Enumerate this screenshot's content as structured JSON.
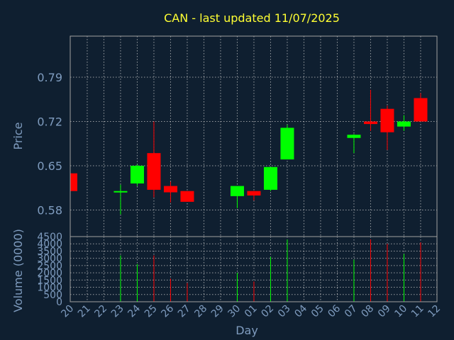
{
  "chart_data": {
    "type": "candlestick",
    "title": "CAN - last updated 11/07/2025",
    "xlabel": "Day",
    "price_panel": {
      "ylabel": "Price",
      "ylim": [
        0.538,
        0.855
      ],
      "yticks": [
        0.58,
        0.65,
        0.72,
        0.79
      ],
      "ytick_labels": [
        "0.58",
        "0.65",
        "0.72",
        "0.79"
      ],
      "grid": true
    },
    "volume_panel": {
      "ylabel": "Volume (0000)",
      "ylim": [
        0,
        4500
      ],
      "yticks": [
        0,
        500,
        1000,
        1500,
        2000,
        2500,
        3000,
        3500,
        4000,
        4500
      ],
      "ytick_labels": [
        "0",
        "500",
        "1000",
        "1500",
        "2000",
        "2500",
        "3000",
        "3500",
        "4000",
        "4500"
      ],
      "grid": true
    },
    "x_tick_labels": [
      "20",
      "21",
      "22",
      "23",
      "24",
      "25",
      "26",
      "27",
      "28",
      "29",
      "30",
      "01",
      "02",
      "03",
      "04",
      "05",
      "06",
      "07",
      "08",
      "09",
      "10",
      "11",
      "12"
    ],
    "colors": {
      "up": "#00ff00",
      "down": "#ff0000"
    },
    "candles": [
      {
        "x": 0,
        "open": 0.638,
        "high": 0.638,
        "low": 0.61,
        "close": 0.61,
        "volume": 0
      },
      {
        "x": 3,
        "open": 0.608,
        "high": 0.62,
        "low": 0.573,
        "close": 0.61,
        "volume": 3200
      },
      {
        "x": 4,
        "open": 0.622,
        "high": 0.652,
        "low": 0.618,
        "close": 0.65,
        "volume": 2600
      },
      {
        "x": 5,
        "open": 0.67,
        "high": 0.72,
        "low": 0.6,
        "close": 0.612,
        "volume": 3200
      },
      {
        "x": 6,
        "open": 0.618,
        "high": 0.625,
        "low": 0.592,
        "close": 0.608,
        "volume": 1600
      },
      {
        "x": 7,
        "open": 0.61,
        "high": 0.61,
        "low": 0.593,
        "close": 0.593,
        "volume": 1300
      },
      {
        "x": 10,
        "open": 0.602,
        "high": 0.618,
        "low": 0.583,
        "close": 0.618,
        "volume": 2000
      },
      {
        "x": 11,
        "open": 0.61,
        "high": 0.61,
        "low": 0.595,
        "close": 0.603,
        "volume": 1400
      },
      {
        "x": 12,
        "open": 0.612,
        "high": 0.648,
        "low": 0.61,
        "close": 0.648,
        "volume": 3100
      },
      {
        "x": 13,
        "open": 0.66,
        "high": 0.715,
        "low": 0.66,
        "close": 0.71,
        "volume": 4300
      },
      {
        "x": 17,
        "open": 0.694,
        "high": 0.7,
        "low": 0.67,
        "close": 0.699,
        "volume": 2900
      },
      {
        "x": 18,
        "open": 0.72,
        "high": 0.77,
        "low": 0.705,
        "close": 0.716,
        "volume": 4300
      },
      {
        "x": 19,
        "open": 0.74,
        "high": 0.745,
        "low": 0.675,
        "close": 0.703,
        "volume": 4000
      },
      {
        "x": 20,
        "open": 0.712,
        "high": 0.73,
        "low": 0.705,
        "close": 0.72,
        "volume": 3300
      },
      {
        "x": 21,
        "open": 0.757,
        "high": 0.765,
        "low": 0.72,
        "close": 0.72,
        "volume": 4100
      }
    ]
  }
}
